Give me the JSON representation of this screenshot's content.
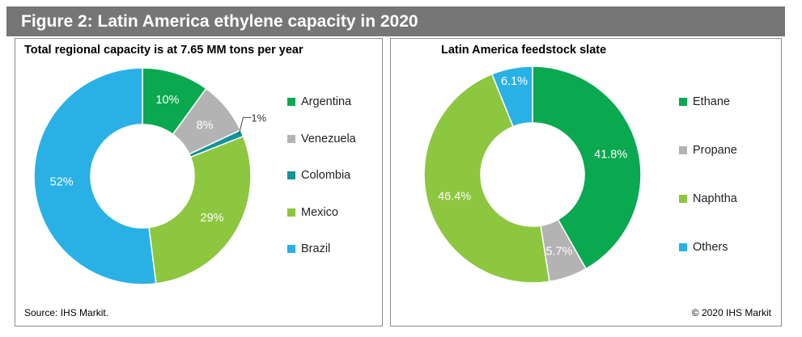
{
  "figure_title": "Figure 2: Latin America ethylene capacity in 2020",
  "source": "Source: IHS Markit.",
  "copyright": "© 2020 IHS Markit",
  "colors": {
    "green": "#0aa84f",
    "gray": "#b3b3b3",
    "teal": "#12939a",
    "lightgreen": "#8dc63f",
    "blue": "#29b1e6",
    "title_bar": "#767676"
  },
  "chart_data": [
    {
      "type": "pie",
      "variant": "donut",
      "title": "Total regional capacity is at 7.65 MM tons per year",
      "categories": [
        "Argentina",
        "Venezuela",
        "Colombia",
        "Mexico",
        "Brazil"
      ],
      "values": [
        10,
        8,
        1,
        29,
        52
      ],
      "labels": [
        "10%",
        "8%",
        "1%",
        "29%",
        "52%"
      ],
      "colors": [
        "#0aa84f",
        "#b3b3b3",
        "#12939a",
        "#8dc63f",
        "#29b1e6"
      ],
      "legend_position": "right"
    },
    {
      "type": "pie",
      "variant": "donut",
      "title": "Latin America feedstock slate",
      "categories": [
        "Ethane",
        "Propane",
        "Naphtha",
        "Others"
      ],
      "values": [
        41.8,
        5.7,
        46.4,
        6.1
      ],
      "labels": [
        "41.8%",
        "5.7%",
        "46.4%",
        "6.1%"
      ],
      "colors": [
        "#0aa84f",
        "#b3b3b3",
        "#8dc63f",
        "#29b1e6"
      ],
      "legend_position": "right"
    }
  ]
}
